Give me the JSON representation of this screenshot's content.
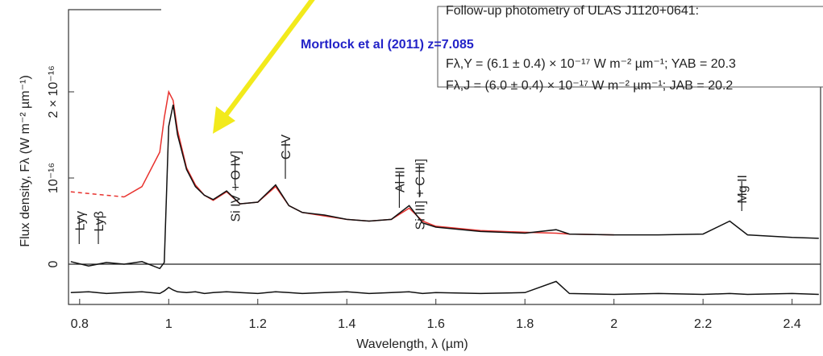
{
  "chart_data": {
    "type": "line",
    "title": "Mortlock et al (2011) z=7.085",
    "xlabel": "Wavelength, λ (µm)",
    "ylabel": "Flux density, Fλ (W m⁻² µm⁻¹)",
    "inset_lines": [
      "Follow-up photometry of ULAS J1120+0641:",
      "Fλ,Y = (6.1 ± 0.4) × 10⁻¹⁷ W m⁻² µm⁻¹; YAB = 20.3",
      "Fλ,J = (6.0 ± 0.4) × 10⁻¹⁷ W m⁻² µm⁻¹; JAB = 20.2"
    ],
    "annotations": [
      {
        "text": "Lyγ",
        "x": 0.799
      },
      {
        "text": "Lyβ",
        "x": 0.842
      },
      {
        "text": "Si IV + O IV]",
        "x": 1.149
      },
      {
        "text": "C IV",
        "x": 1.262
      },
      {
        "text": "Al III",
        "x": 1.518
      },
      {
        "text": "Si III] + C III]",
        "x": 1.563
      },
      {
        "text": "Mg II",
        "x": 2.287
      }
    ],
    "x": [
      0.78,
      0.82,
      0.86,
      0.9,
      0.94,
      0.98,
      0.99,
      1.0,
      1.01,
      1.02,
      1.04,
      1.06,
      1.08,
      1.1,
      1.13,
      1.16,
      1.2,
      1.24,
      1.27,
      1.3,
      1.35,
      1.4,
      1.45,
      1.5,
      1.54,
      1.57,
      1.6,
      1.7,
      1.8,
      1.87,
      1.9,
      2.0,
      2.1,
      2.2,
      2.26,
      2.3,
      2.4,
      2.46
    ],
    "series": [
      {
        "color": "#e8322e",
        "dash": true,
        "values": [
          8.4e-17,
          8.2e-17,
          8e-17,
          7.8e-17,
          null,
          null,
          null,
          null,
          null,
          null,
          null,
          null,
          null,
          null,
          null,
          null,
          null,
          null,
          null,
          null,
          null,
          null,
          null,
          null,
          null,
          null,
          null,
          null,
          null,
          null,
          null,
          null,
          null,
          null,
          null,
          null,
          null,
          null
        ]
      },
      {
        "color": "#e8322e",
        "dash": false,
        "values": [
          null,
          null,
          null,
          7.8e-17,
          9e-17,
          1.3e-16,
          1.7e-16,
          2e-16,
          1.9e-16,
          1.55e-16,
          1.12e-16,
          9.2e-17,
          8e-17,
          7.4e-17,
          8.4e-17,
          7e-17,
          7.2e-17,
          9e-17,
          6.8e-17,
          6e-17,
          5.6e-17,
          5.2e-17,
          5e-17,
          5.2e-17,
          6.5e-17,
          5e-17,
          4.4e-17,
          3.9e-17,
          3.7e-17,
          3.6e-17,
          3.5e-17,
          3.4e-17,
          null,
          null,
          null,
          null,
          null,
          null
        ]
      },
      {
        "color": "#111111",
        "dash": false,
        "values": [
          3e-18,
          -2e-18,
          2e-18,
          0.0,
          3e-18,
          -5e-18,
          2e-18,
          1.6e-16,
          1.85e-16,
          1.5e-16,
          1.1e-16,
          9e-17,
          8e-17,
          7.5e-17,
          8.5e-17,
          7e-17,
          7.2e-17,
          9.2e-17,
          6.8e-17,
          6e-17,
          5.7e-17,
          5.2e-17,
          5e-17,
          5.2e-17,
          6.8e-17,
          4.8e-17,
          4.3e-17,
          3.8e-17,
          3.6e-17,
          4e-17,
          3.5e-17,
          3.4e-17,
          3.4e-17,
          3.5e-17,
          5e-17,
          3.4e-17,
          3.1e-17,
          3e-17
        ]
      },
      {
        "color": "#111111",
        "dash": false,
        "values": [
          -3.3e-17,
          -3.2e-17,
          -3.4e-17,
          -3.3e-17,
          -3.2e-17,
          -3.4e-17,
          -3.1e-17,
          -2.7e-17,
          -3e-17,
          -3.2e-17,
          -3.3e-17,
          -3.2e-17,
          -3.4e-17,
          -3.3e-17,
          -3.2e-17,
          -3.3e-17,
          -3.4e-17,
          -3.2e-17,
          -3.3e-17,
          -3.4e-17,
          -3.3e-17,
          -3.2e-17,
          -3.4e-17,
          -3.3e-17,
          -3.2e-17,
          -3.4e-17,
          -3.3e-17,
          -3.4e-17,
          -3.3e-17,
          -2e-17,
          -3.4e-17,
          -3.5e-17,
          -3.4e-17,
          -3.5e-17,
          -3.4e-17,
          -3.5e-17,
          -3.4e-17,
          -3.5e-17
        ]
      }
    ],
    "xlim": [
      0.775,
      2.464
    ],
    "ylim": [
      -4.67e-17,
      2.953e-16
    ],
    "xticks": [
      0.8,
      1,
      1.2,
      1.4,
      1.6,
      1.8,
      2,
      2.2,
      2.4
    ],
    "yticks": [
      0,
      {
        "value": 1e-16,
        "label": "10⁻¹⁶"
      },
      {
        "value": 2e-16,
        "label": "2 × 10⁻¹⁶"
      }
    ]
  }
}
